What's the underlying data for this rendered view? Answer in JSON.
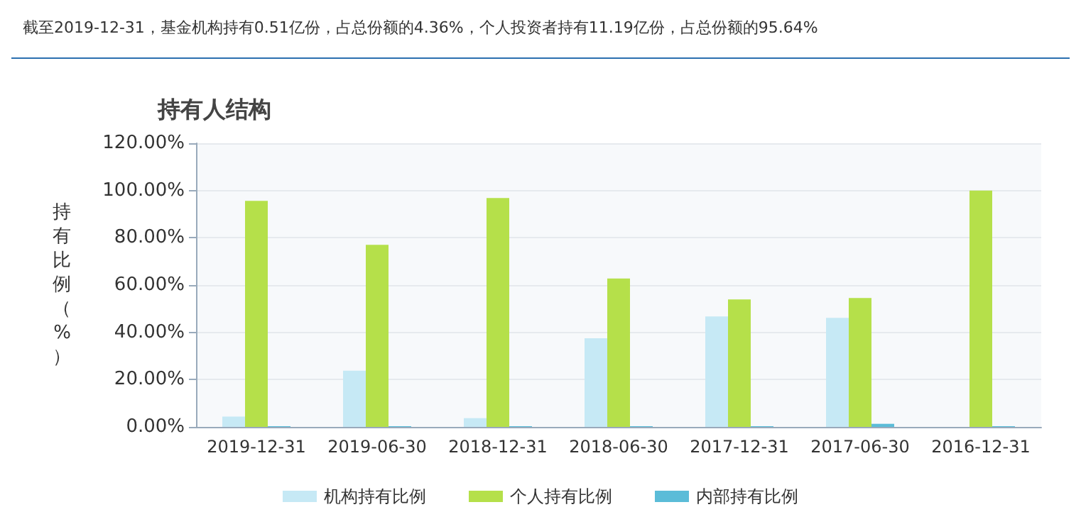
{
  "chart_data": {
    "type": "bar",
    "title": "持有人结构",
    "ylabel": "持有比例（%）",
    "annotations": [
      "截至2019-12-31，基金机构持有0.51亿份，占总份额的4.36%，个人投资者持有11.19亿份，占总份额的95.64%"
    ],
    "categories": [
      "2019-12-31",
      "2019-06-30",
      "2018-12-31",
      "2018-06-30",
      "2017-12-31",
      "2017-06-30",
      "2016-12-31"
    ],
    "series": [
      {
        "name": "机构持有比例",
        "color": "#c6e9f5",
        "values": [
          4.36,
          23.8,
          3.7,
          37.5,
          46.7,
          46.1,
          0
        ]
      },
      {
        "name": "个人持有比例",
        "color": "#b5e04a",
        "values": [
          95.64,
          77.0,
          96.8,
          62.8,
          53.9,
          54.5,
          100
        ]
      },
      {
        "name": "内部持有比例",
        "color": "#5bbcd8",
        "values": [
          0.3,
          0.3,
          0.3,
          0.3,
          0.3,
          1.3,
          0.3
        ]
      }
    ],
    "ylim": [
      0,
      120
    ],
    "yticks": [
      {
        "value": 0,
        "label": "0.00%"
      },
      {
        "value": 20,
        "label": "20.00%"
      },
      {
        "value": 40,
        "label": "40.00%"
      },
      {
        "value": 60,
        "label": "60.00%"
      },
      {
        "value": 80,
        "label": "80.00%"
      },
      {
        "value": 100,
        "label": "100.00%"
      },
      {
        "value": 120,
        "label": "120.00%"
      }
    ],
    "grid": "y",
    "legend": "bottom"
  }
}
